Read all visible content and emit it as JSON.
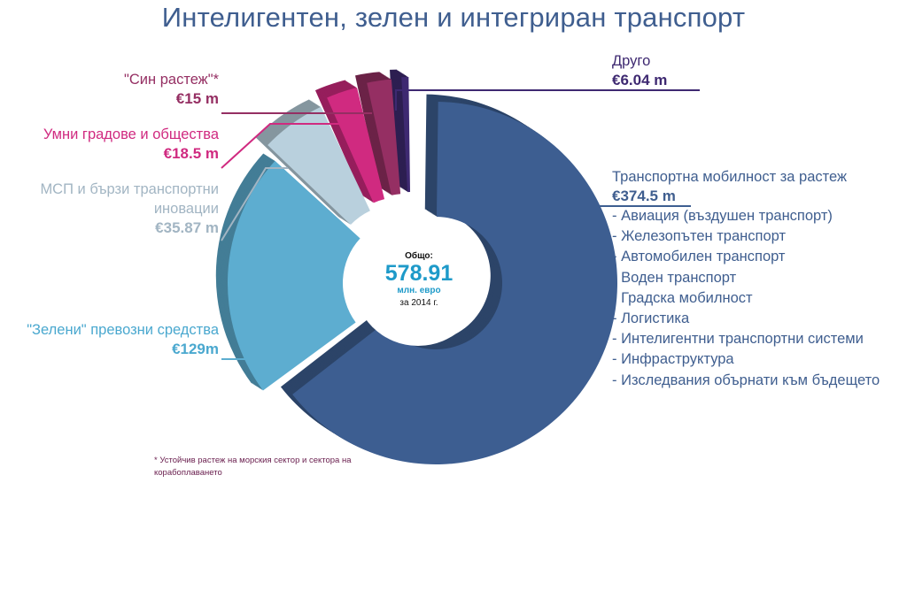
{
  "title": "Интелигентен, зелен и интегриран транспорт",
  "center": {
    "label": "Общо:",
    "value": "578.91",
    "unit": "млн. евро",
    "year": "за 2014 г."
  },
  "footnote": "* Устойчив растеж на морския сектор и сектора на корабоплаването",
  "colors": {
    "transport": "#3d5e91",
    "green": "#5dadd0",
    "sme": "#b9d0dd",
    "smart": "#d02a80",
    "blue_growth": "#952f63",
    "other": "#3e2971"
  },
  "chart_data": {
    "type": "pie",
    "variant": "3d-donut",
    "total": 578.91,
    "unit": "€ m",
    "slices": [
      {
        "name": "Транспортна мобилност за растеж",
        "value": 374.5,
        "label_value": "€374.5 m"
      },
      {
        "name": "\"Зелени\" превозни средства",
        "value": 129,
        "label_value": "€129m"
      },
      {
        "name": "МСП и бързи транспортни иновации",
        "value": 35.87,
        "label_value": "€35.87 m"
      },
      {
        "name": "Умни градове и общества",
        "value": 18.5,
        "label_value": "€18.5 m"
      },
      {
        "name": "\"Син растеж\"*",
        "value": 15,
        "label_value": "€15 m"
      },
      {
        "name": "Друго",
        "value": 6.04,
        "label_value": "€6.04 m"
      }
    ],
    "subitems": [
      "Авиация (въздушен транспорт)",
      "Железопътен транспорт",
      "Автомобилен транспорт",
      "Воден транспорт",
      "Градска мобилност",
      "Логистика",
      "Интелигентни транспортни системи",
      "Инфраструктура",
      "Изследвания обърнати към бъдещето"
    ]
  }
}
